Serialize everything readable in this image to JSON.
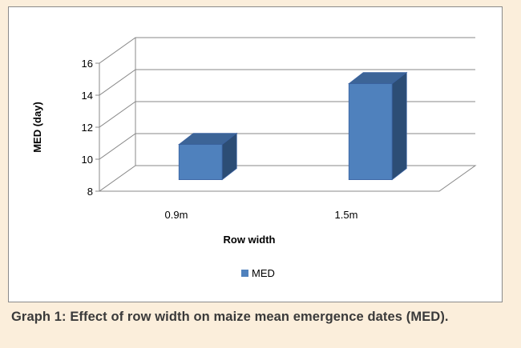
{
  "chart_data": {
    "type": "bar",
    "three_d": true,
    "categories": [
      "0.9m",
      "1.5m"
    ],
    "series": [
      {
        "name": "MED",
        "values": [
          10.2,
          14.0
        ]
      }
    ],
    "xlabel": "Row width",
    "ylabel": "MED (day)",
    "ylim": [
      8,
      16
    ],
    "yticks": [
      8,
      10,
      12,
      14,
      16
    ],
    "grid": true,
    "legend_position": "bottom",
    "colors": {
      "bar_front": "#4f81bd",
      "bar_top": "#3c6497",
      "bar_side": "#2c4d75",
      "bar_stroke": "#3a62a0",
      "grid": "#888888",
      "text": "#000000"
    }
  },
  "caption": "Graph 1: Effect of row width on maize mean emergence dates (MED)."
}
